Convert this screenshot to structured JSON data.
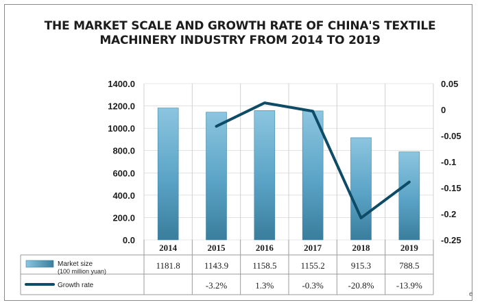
{
  "title_lines": [
    "THE MARKET SCALE AND GROWTH RATE OF CHINA'S TEXTILE",
    "MACHINERY INDUSTRY FROM 2014 TO 2019"
  ],
  "colors": {
    "bar_light": "#8cc5df",
    "bar_mid": "#5aa3c6",
    "bar_dark": "#3a7d9c",
    "line": "#0d4b66",
    "grid": "#d0d0d0",
    "text": "#1c1c1c"
  },
  "corner_mark": "e",
  "chart_data": {
    "type": "bar",
    "title": "THE MARKET SCALE AND GROWTH RATE OF CHINA'S TEXTILE MACHINERY INDUSTRY FROM 2014 TO 2019",
    "categories": [
      "2014",
      "2015",
      "2016",
      "2017",
      "2018",
      "2019"
    ],
    "series": [
      {
        "name": "Market size",
        "name_sub": "(100 million yuan)",
        "type": "bar",
        "axis": "left",
        "values": [
          1181.8,
          1143.9,
          1158.5,
          1155.2,
          915.3,
          788.5
        ],
        "labels": [
          "1181.8",
          "1143.9",
          "1158.5",
          "1155.2",
          "915.3",
          "788.5"
        ]
      },
      {
        "name": "Growth rate",
        "type": "line",
        "axis": "right",
        "values": [
          null,
          -0.032,
          0.013,
          -0.003,
          -0.208,
          -0.139
        ],
        "labels": [
          "",
          "-3.2%",
          "1.3%",
          "-0.3%",
          "-20.8%",
          "-13.9%"
        ]
      }
    ],
    "y_left": {
      "min": 0,
      "max": 1400,
      "ticks": [
        0,
        200,
        400,
        600,
        800,
        1000,
        1200,
        1400
      ],
      "tick_labels": [
        "0.0",
        "200.0",
        "400.0",
        "600.0",
        "800.0",
        "1000.0",
        "1200.0",
        "1400.0"
      ]
    },
    "y_right": {
      "min": -0.25,
      "max": 0.05,
      "ticks": [
        -0.25,
        -0.2,
        -0.15,
        -0.1,
        -0.05,
        0,
        0.05
      ],
      "tick_labels": [
        "-0.25",
        "-0.2",
        "-0.15",
        "-0.1",
        "-0.05",
        "0",
        "0.05"
      ]
    },
    "grid": true,
    "legend": "data-table",
    "xlabel": "",
    "ylabel": ""
  }
}
